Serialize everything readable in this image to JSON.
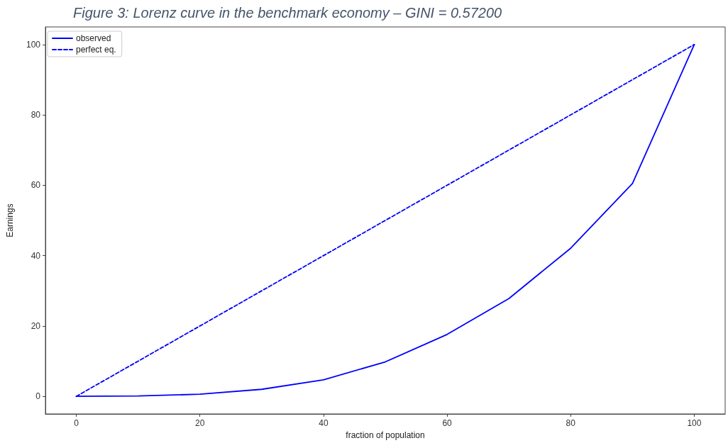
{
  "chart_data": {
    "type": "line",
    "title": "Figure 3: Lorenz curve in the benchmark economy – GINI = 0.57200",
    "xlabel": "fraction of population",
    "ylabel": "Earnings",
    "series": [
      {
        "name": "observed",
        "color": "#0000ff",
        "line_style": "solid",
        "x": [
          0,
          10,
          20,
          30,
          40,
          50,
          60,
          70,
          80,
          90,
          100
        ],
        "values": [
          0,
          0.1,
          0.6,
          2.0,
          4.7,
          9.8,
          17.6,
          27.8,
          42.1,
          60.5,
          100
        ]
      },
      {
        "name": "perfect eq.",
        "color": "#0000ff",
        "line_style": "dashed",
        "x": [
          0,
          100
        ],
        "values": [
          0,
          100
        ]
      }
    ],
    "xlim": [
      -5,
      105
    ],
    "ylim": [
      -5,
      105
    ],
    "xticks": [
      0,
      20,
      40,
      60,
      80,
      100
    ],
    "yticks": [
      0,
      20,
      40,
      60,
      80,
      100
    ],
    "grid": false,
    "legend": "top left"
  }
}
